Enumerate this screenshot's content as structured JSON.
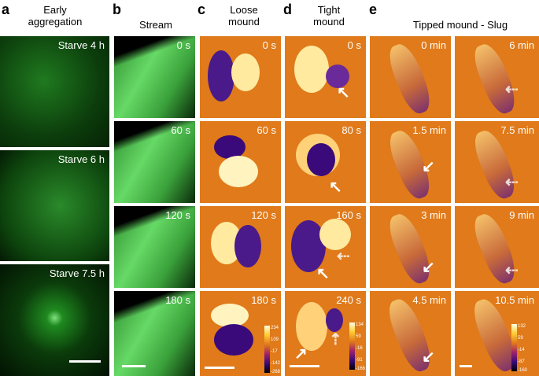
{
  "panels": {
    "a": {
      "label": "a",
      "title": "Early\naggregation",
      "tags": [
        "Starve 4 h",
        "Starve 6 h",
        "Starve 7.5 h"
      ]
    },
    "b": {
      "label": "b",
      "title": "Stream",
      "tags": [
        "0 s",
        "60 s",
        "120 s",
        "180 s"
      ]
    },
    "c": {
      "label": "c",
      "title": "Loose\nmound",
      "tags": [
        "0 s",
        "60 s",
        "120 s",
        "180 s"
      ],
      "colorbar": [
        "234",
        "109",
        "-17",
        "-142",
        "-268"
      ]
    },
    "d": {
      "label": "d",
      "title": "Tight\nmound",
      "tags": [
        "0 s",
        "80 s",
        "160 s",
        "240 s"
      ],
      "colorbar": [
        "134",
        "59",
        "-16",
        "-91",
        "-166"
      ]
    },
    "e": {
      "label": "e",
      "title": "Tipped mound - Slug",
      "tags_left": [
        "0 min",
        "1.5 min",
        "3 min",
        "4.5 min"
      ],
      "tags_right": [
        "6 min",
        "7.5 min",
        "9 min",
        "10.5 min"
      ],
      "colorbar": [
        "132",
        "59",
        "-14",
        "-87",
        "-160"
      ]
    }
  },
  "colors": {
    "green": "#2d8c2d",
    "orange": "#e07a1a",
    "purple": "#3a0a7a"
  },
  "icons": [
    "solid-arrow-icon",
    "dashed-arrow-icon",
    "scale-bar"
  ]
}
